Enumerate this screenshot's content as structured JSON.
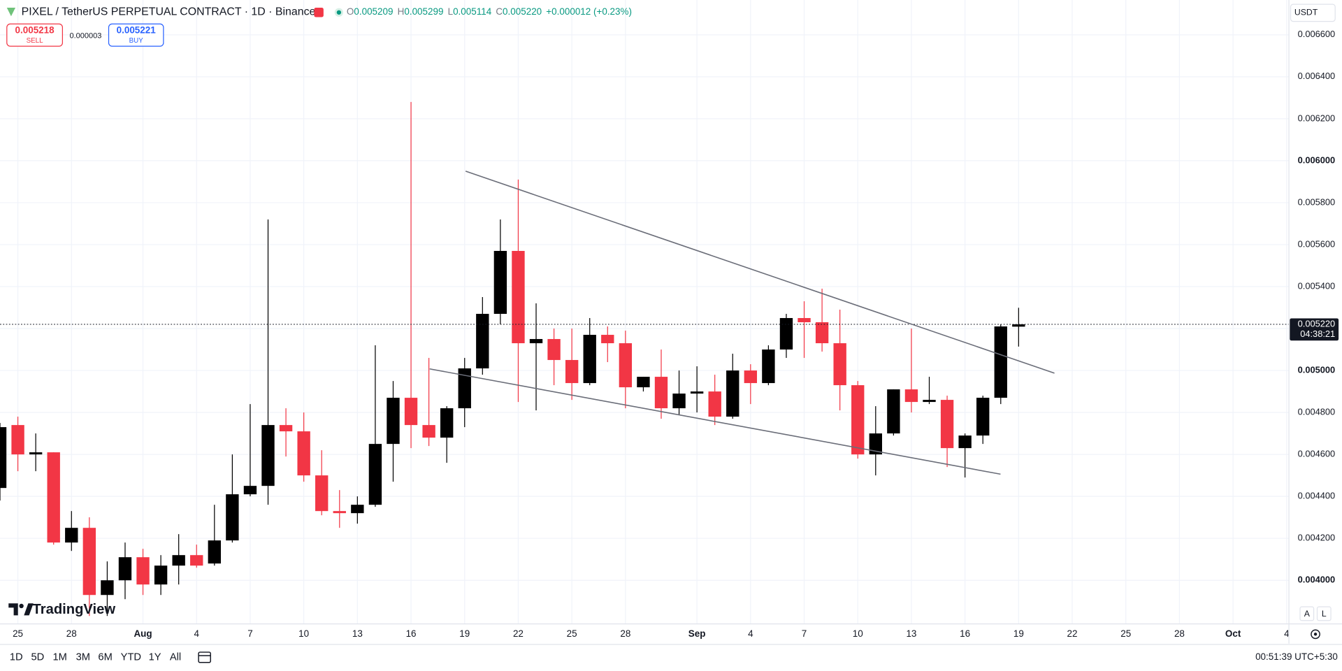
{
  "header": {
    "symbol": "PIXEL / TetherUS PERPETUAL CONTRACT · 1D · Binance",
    "ohlc": [
      {
        "label": "O",
        "value": "0.005209"
      },
      {
        "label": "H",
        "value": "0.005299"
      },
      {
        "label": "L",
        "value": "0.005114"
      },
      {
        "label": "C",
        "value": "0.005220"
      }
    ],
    "change": "+0.000012 (+0.23%)",
    "currency": "USDT"
  },
  "trade": {
    "sell_price": "0.005218",
    "sell": "SELL",
    "spread": "0.000003",
    "buy_price": "0.005221",
    "buy": "BUY"
  },
  "chart_data": {
    "type": "candlestick",
    "x": [
      "Jul 24",
      "Jul 25",
      "Jul 26",
      "Jul 27",
      "Jul 28",
      "Jul 29",
      "Jul 30",
      "Jul 31",
      "Aug 1",
      "Aug 2",
      "Aug 3",
      "Aug 4",
      "Aug 5",
      "Aug 6",
      "Aug 7",
      "Aug 8",
      "Aug 9",
      "Aug 10",
      "Aug 11",
      "Aug 12",
      "Aug 13",
      "Aug 14",
      "Aug 15",
      "Aug 16",
      "Aug 17",
      "Aug 18",
      "Aug 19",
      "Aug 20",
      "Aug 21",
      "Aug 22",
      "Aug 23",
      "Aug 24",
      "Aug 25",
      "Aug 26",
      "Aug 27",
      "Aug 28",
      "Aug 29",
      "Aug 30",
      "Aug 31",
      "Sep 1",
      "Sep 2",
      "Sep 3",
      "Sep 4",
      "Sep 5",
      "Sep 6",
      "Sep 7",
      "Sep 8",
      "Sep 9",
      "Sep 10",
      "Sep 11",
      "Sep 12",
      "Sep 13",
      "Sep 14",
      "Sep 15",
      "Sep 16",
      "Sep 17",
      "Sep 18",
      "Sep 19"
    ],
    "open": [
      0.00444,
      0.00474,
      0.0046,
      0.00461,
      0.00418,
      0.00425,
      0.00393,
      0.004,
      0.00411,
      0.00398,
      0.00407,
      0.00412,
      0.00408,
      0.00419,
      0.00441,
      0.00445,
      0.00474,
      0.00471,
      0.0045,
      0.00433,
      0.00432,
      0.00436,
      0.00465,
      0.00487,
      0.00474,
      0.00468,
      0.00482,
      0.00501,
      0.00527,
      0.00557,
      0.00513,
      0.00515,
      0.00505,
      0.00494,
      0.00517,
      0.00513,
      0.00492,
      0.00497,
      0.00482,
      0.00489,
      0.0049,
      0.00478,
      0.005,
      0.00494,
      0.0051,
      0.00525,
      0.00523,
      0.00513,
      0.00493,
      0.0046,
      0.0047,
      0.00491,
      0.00485,
      0.00486,
      0.00463,
      0.00469,
      0.00487,
      0.005209
    ],
    "high": [
      0.00475,
      0.00478,
      0.0047,
      0.00461,
      0.00433,
      0.0043,
      0.00409,
      0.00418,
      0.00415,
      0.00412,
      0.00422,
      0.00417,
      0.00436,
      0.0046,
      0.00484,
      0.00572,
      0.00482,
      0.0048,
      0.00462,
      0.00443,
      0.0044,
      0.00512,
      0.00495,
      0.00628,
      0.00506,
      0.00483,
      0.00506,
      0.00535,
      0.00572,
      0.00591,
      0.00532,
      0.0052,
      0.0052,
      0.00525,
      0.00521,
      0.00519,
      0.00497,
      0.0051,
      0.005,
      0.00502,
      0.00498,
      0.00508,
      0.00503,
      0.00512,
      0.00527,
      0.00533,
      0.00539,
      0.00529,
      0.00495,
      0.00483,
      0.00491,
      0.0052,
      0.00497,
      0.00488,
      0.0047,
      0.00488,
      0.00522,
      0.005299
    ],
    "low": [
      0.00438,
      0.00452,
      0.00452,
      0.00417,
      0.00414,
      0.00383,
      0.00383,
      0.00391,
      0.00393,
      0.00393,
      0.00398,
      0.00406,
      0.00407,
      0.00418,
      0.0044,
      0.00436,
      0.00459,
      0.00447,
      0.00431,
      0.00425,
      0.00427,
      0.00435,
      0.00447,
      0.00463,
      0.00464,
      0.00456,
      0.00473,
      0.00498,
      0.00522,
      0.00485,
      0.00481,
      0.00493,
      0.00486,
      0.00493,
      0.00504,
      0.00482,
      0.0049,
      0.00477,
      0.00479,
      0.0048,
      0.00474,
      0.00477,
      0.00484,
      0.00493,
      0.00506,
      0.00506,
      0.00509,
      0.00481,
      0.00458,
      0.0045,
      0.00469,
      0.0048,
      0.00484,
      0.00454,
      0.00449,
      0.00465,
      0.00484,
      0.005114
    ],
    "close": [
      0.00473,
      0.0046,
      0.00461,
      0.00418,
      0.00425,
      0.00393,
      0.004,
      0.00411,
      0.00398,
      0.00407,
      0.00412,
      0.00407,
      0.00419,
      0.00441,
      0.00445,
      0.00474,
      0.00471,
      0.0045,
      0.00433,
      0.00432,
      0.00436,
      0.00465,
      0.00487,
      0.00474,
      0.00468,
      0.00482,
      0.00501,
      0.00527,
      0.00557,
      0.00513,
      0.00515,
      0.00505,
      0.00494,
      0.00517,
      0.00513,
      0.00492,
      0.00497,
      0.00482,
      0.00489,
      0.0049,
      0.00478,
      0.005,
      0.00494,
      0.0051,
      0.00525,
      0.00523,
      0.00513,
      0.00493,
      0.0046,
      0.0047,
      0.00491,
      0.00485,
      0.00486,
      0.00463,
      0.00469,
      0.00487,
      0.00521,
      0.00522
    ],
    "up_color": "#000000",
    "down_color": "#f23645",
    "ylim": [
      0.003792,
      0.006766
    ],
    "yticks": [
      {
        "value": 0.0066,
        "label": "0.006600"
      },
      {
        "value": 0.0064,
        "label": "0.006400"
      },
      {
        "value": 0.0062,
        "label": "0.006200"
      },
      {
        "value": 0.006,
        "label": "0.006000"
      },
      {
        "value": 0.0058,
        "label": "0.005800"
      },
      {
        "value": 0.0056,
        "label": "0.005600"
      },
      {
        "value": 0.0054,
        "label": "0.005400"
      },
      {
        "value": 0.0052,
        "label": "0.005200"
      },
      {
        "value": 0.005,
        "label": "0.005000"
      },
      {
        "value": 0.0048,
        "label": "0.004800"
      },
      {
        "value": 0.0046,
        "label": "0.004600"
      },
      {
        "value": 0.0044,
        "label": "0.004400"
      },
      {
        "value": 0.0042,
        "label": "0.004200"
      },
      {
        "value": 0.004,
        "label": "0.004000"
      }
    ],
    "xticks": [
      {
        "value": "Jul 25",
        "label": "25"
      },
      {
        "value": "Jul 28",
        "label": "28"
      },
      {
        "value": "Aug 1",
        "label": "Aug"
      },
      {
        "value": "Aug 4",
        "label": "4"
      },
      {
        "value": "Aug 7",
        "label": "7"
      },
      {
        "value": "Aug 10",
        "label": "10"
      },
      {
        "value": "Aug 13",
        "label": "13"
      },
      {
        "value": "Aug 16",
        "label": "16"
      },
      {
        "value": "Aug 19",
        "label": "19"
      },
      {
        "value": "Aug 22",
        "label": "22"
      },
      {
        "value": "Aug 25",
        "label": "25"
      },
      {
        "value": "Aug 28",
        "label": "28"
      },
      {
        "value": "Sep 1",
        "label": "Sep"
      },
      {
        "value": "Sep 4",
        "label": "4"
      },
      {
        "value": "Sep 7",
        "label": "7"
      },
      {
        "value": "Sep 10",
        "label": "10"
      },
      {
        "value": "Sep 13",
        "label": "13"
      },
      {
        "value": "Sep 16",
        "label": "16"
      },
      {
        "value": "Sep 19",
        "label": "19"
      },
      {
        "value": "Sep 22",
        "label": "22"
      },
      {
        "value": "Sep 25",
        "label": "25"
      },
      {
        "value": "Sep 28",
        "label": "28"
      },
      {
        "value": "Oct 1",
        "label": "Oct"
      },
      {
        "value": "Oct 4",
        "label": "4"
      }
    ],
    "grid": true,
    "price_label": "0.005220",
    "countdown": "04:38:21"
  },
  "toolbar": {
    "timeframes": [
      "1D",
      "5D",
      "1M",
      "3M",
      "6M",
      "YTD",
      "1Y",
      "All"
    ],
    "scale_buttons": [
      "A",
      "L"
    ],
    "clock": "00:51:39 UTC+5:30",
    "brand": "TradingView"
  }
}
